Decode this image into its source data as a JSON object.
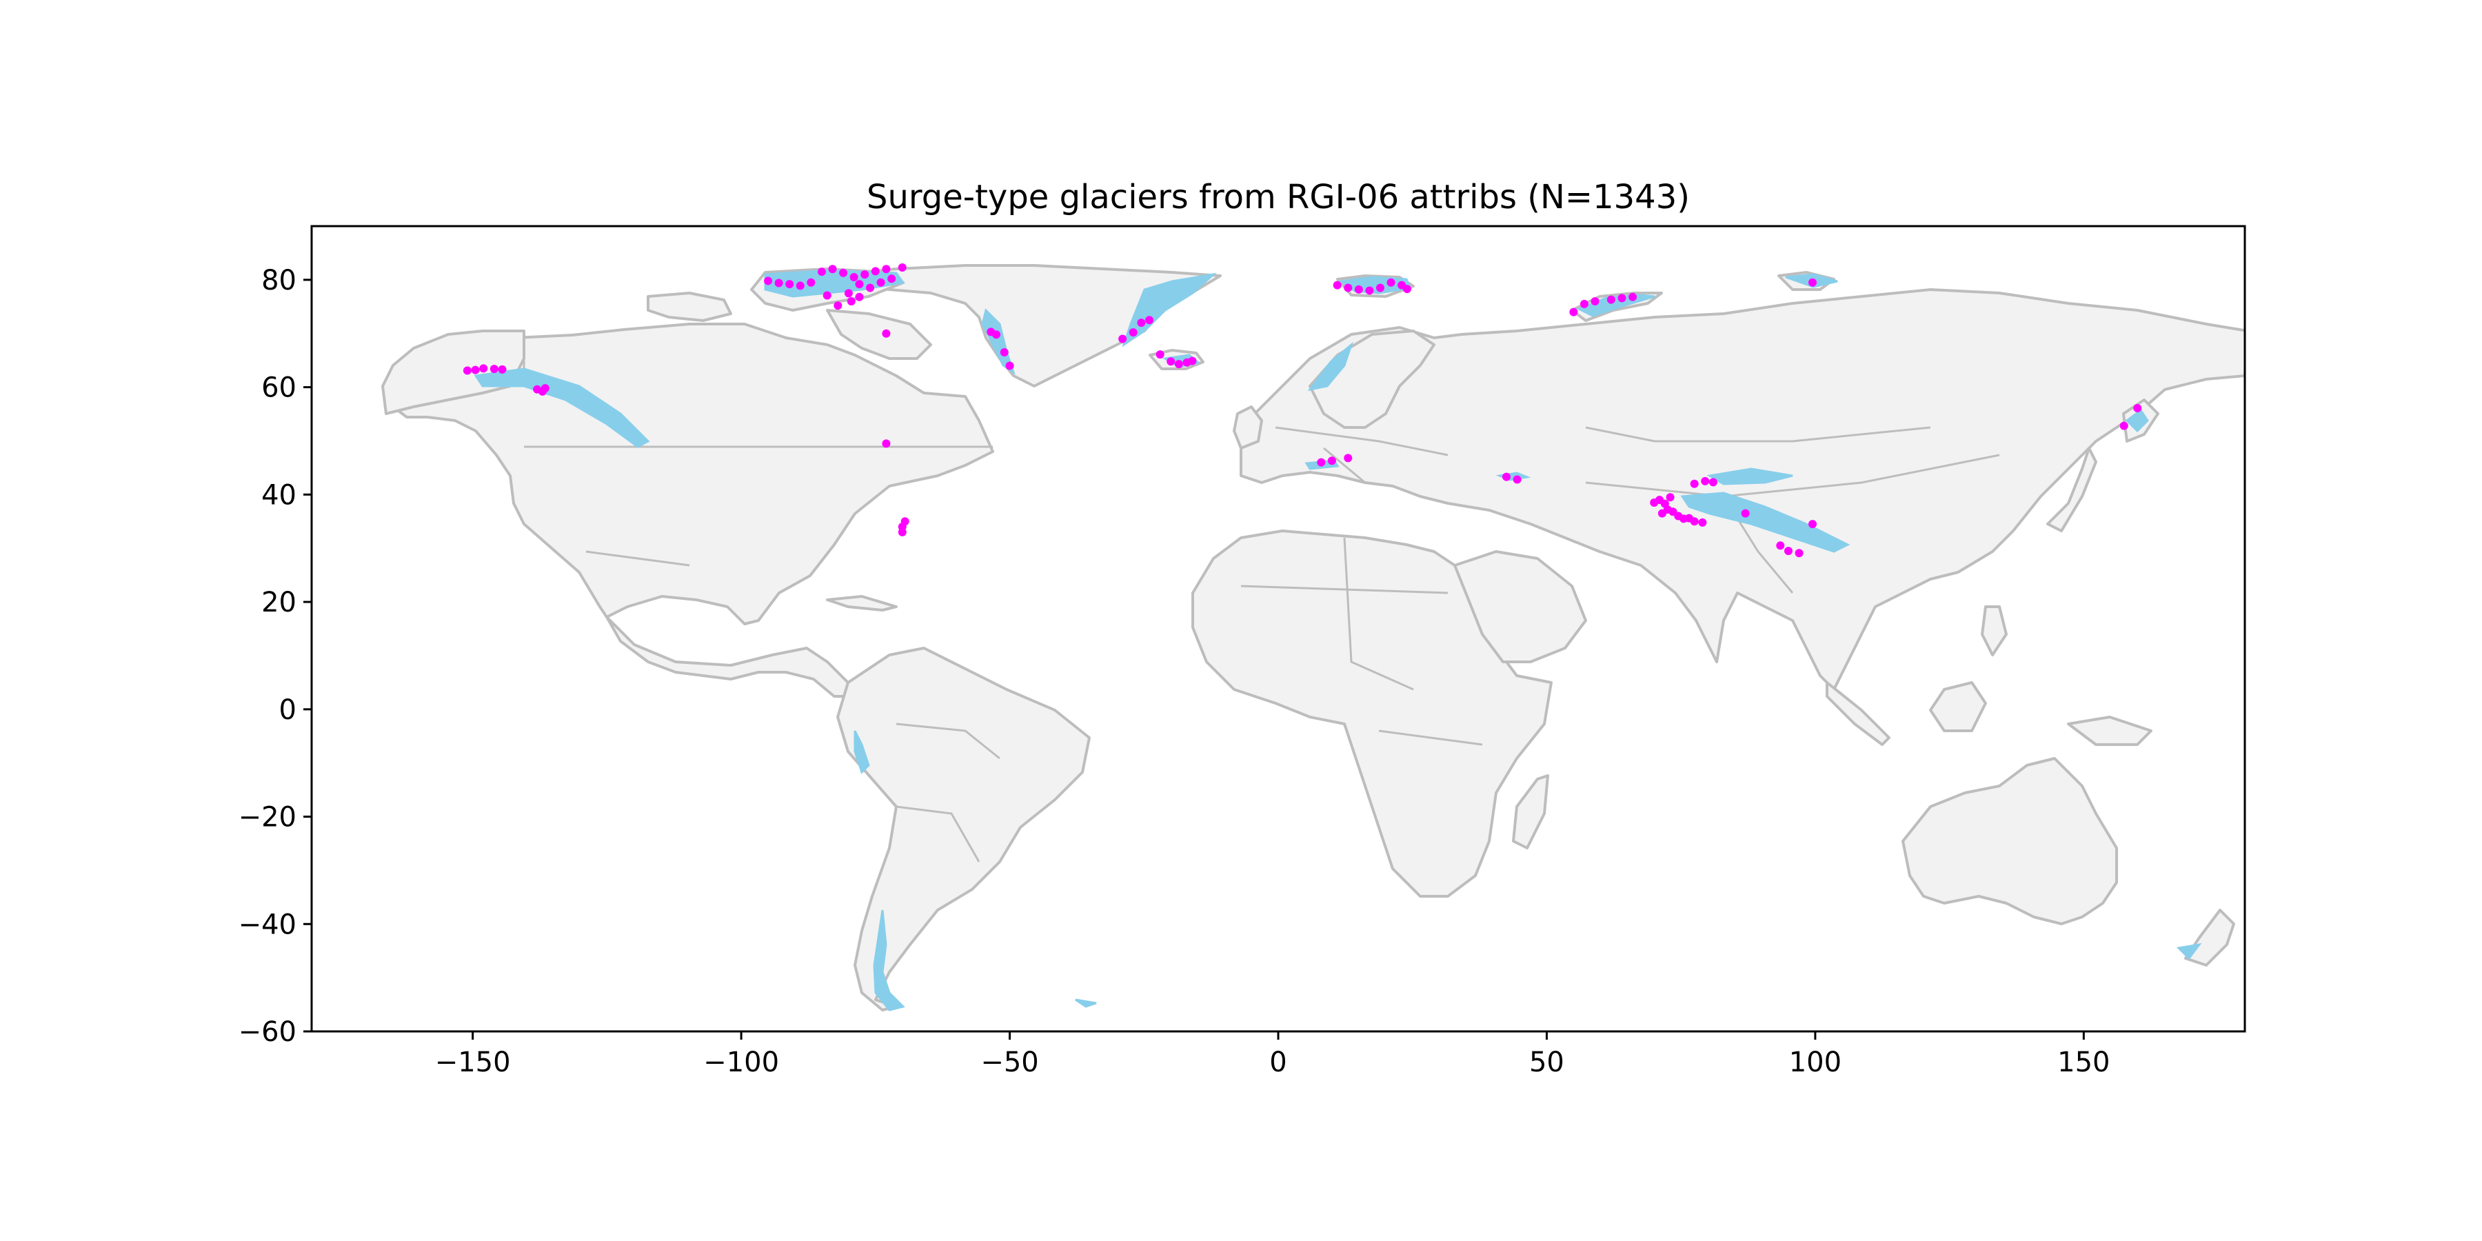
{
  "title": "Surge-type glaciers from RGI-06 attribs (N=1343)",
  "colors": {
    "land_fill": "#f2f2f2",
    "land_edge": "#bdbdbd",
    "glacier": "#87ceeb",
    "surge_point": "#ff00ff",
    "axes": "#000000",
    "background": "#ffffff"
  },
  "chart_data": {
    "type": "scatter",
    "projection": "plate-carree",
    "title": "Surge-type glaciers from RGI-06 attribs (N=1343)",
    "xlim": [
      -180,
      180
    ],
    "ylim": [
      -60,
      90
    ],
    "xticks": [
      -150,
      -100,
      -50,
      0,
      50,
      100,
      150
    ],
    "yticks": [
      -60,
      -40,
      -20,
      0,
      20,
      40,
      60,
      80
    ],
    "xtick_labels": [
      "−150",
      "−100",
      "−50",
      "0",
      "50",
      "100",
      "150"
    ],
    "ytick_labels": [
      "−60",
      "−40",
      "−20",
      "0",
      "20",
      "40",
      "60",
      "80"
    ],
    "grid": false,
    "legend": false,
    "series": [
      {
        "layer": "surge-type glaciers",
        "color": "#ff00ff",
        "points": [
          [
            -151,
            63.1
          ],
          [
            -149.5,
            63.2
          ],
          [
            -148,
            63.5
          ],
          [
            -146,
            63.4
          ],
          [
            -144.5,
            63.3
          ],
          [
            -138,
            59.6
          ],
          [
            -137,
            59.2
          ],
          [
            -136.5,
            59.8
          ],
          [
            -95,
            79.8
          ],
          [
            -93,
            79.4
          ],
          [
            -91,
            79.2
          ],
          [
            -89,
            78.9
          ],
          [
            -87,
            79.5
          ],
          [
            -85,
            81.5
          ],
          [
            -83,
            82
          ],
          [
            -81,
            81.3
          ],
          [
            -79,
            80.5
          ],
          [
            -77,
            81
          ],
          [
            -75,
            81.6
          ],
          [
            -73,
            82
          ],
          [
            -70,
            82.3
          ],
          [
            -78,
            79.2
          ],
          [
            -76,
            78.5
          ],
          [
            -74,
            79.5
          ],
          [
            -72,
            80.2
          ],
          [
            -80,
            77.5
          ],
          [
            -78,
            76.8
          ],
          [
            -82,
            75.2
          ],
          [
            -79.5,
            76
          ],
          [
            -84,
            77.1
          ],
          [
            -73,
            70
          ],
          [
            -53.5,
            70.3
          ],
          [
            -52.5,
            69.8
          ],
          [
            -51,
            66.5
          ],
          [
            -50,
            64
          ],
          [
            -29,
            69
          ],
          [
            -27,
            70.2
          ],
          [
            -25.5,
            72
          ],
          [
            -24,
            72.5
          ],
          [
            -22,
            66.1
          ],
          [
            -20,
            64.8
          ],
          [
            -18.5,
            64.3
          ],
          [
            -17,
            64.6
          ],
          [
            -16,
            64.9
          ],
          [
            11,
            79
          ],
          [
            13,
            78.5
          ],
          [
            15,
            78.2
          ],
          [
            17,
            78
          ],
          [
            19,
            78.5
          ],
          [
            21,
            79.5
          ],
          [
            23,
            79
          ],
          [
            24,
            78.3
          ],
          [
            55,
            74
          ],
          [
            57,
            75.5
          ],
          [
            59,
            76
          ],
          [
            62,
            76.3
          ],
          [
            64,
            76.6
          ],
          [
            66,
            76.8
          ],
          [
            99.5,
            79.5
          ],
          [
            8,
            46
          ],
          [
            10,
            46.3
          ],
          [
            13,
            46.8
          ],
          [
            42.5,
            43.3
          ],
          [
            44.5,
            42.8
          ],
          [
            70,
            38.5
          ],
          [
            71,
            39
          ],
          [
            72,
            38.3
          ],
          [
            72.5,
            37.2
          ],
          [
            73.5,
            36.8
          ],
          [
            74.5,
            36
          ],
          [
            75.5,
            35.5
          ],
          [
            76.5,
            35.6
          ],
          [
            77.5,
            35
          ],
          [
            79,
            34.8
          ],
          [
            71.5,
            36.5
          ],
          [
            73,
            39.5
          ],
          [
            77.5,
            42
          ],
          [
            79.5,
            42.5
          ],
          [
            81,
            42.3
          ],
          [
            87,
            36.5
          ],
          [
            93.5,
            30.5
          ],
          [
            95,
            29.5
          ],
          [
            97,
            29.1
          ],
          [
            99.5,
            34.5
          ],
          [
            157.5,
            52.8
          ],
          [
            160,
            56.1
          ],
          [
            -70,
            33
          ],
          [
            -70,
            34
          ],
          [
            -69.5,
            35
          ],
          [
            -73,
            49.5
          ]
        ]
      }
    ]
  }
}
